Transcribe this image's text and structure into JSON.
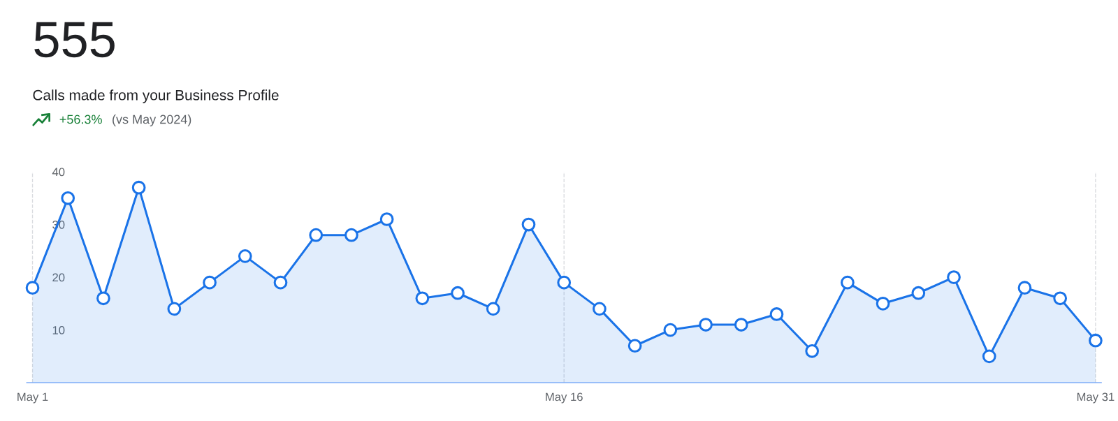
{
  "chart_data": {
    "type": "area",
    "title": "555",
    "subtitle": "Calls made from your Business Profile",
    "annotations": [
      "+56.3%",
      "(vs May 2024)"
    ],
    "categories": [
      "May 1",
      null,
      null,
      null,
      null,
      null,
      null,
      null,
      null,
      null,
      null,
      null,
      null,
      null,
      null,
      "May 16",
      null,
      null,
      null,
      null,
      null,
      null,
      null,
      null,
      null,
      null,
      null,
      null,
      null,
      null,
      "May 31"
    ],
    "series": [
      {
        "color": "#1a73e8",
        "values": [
          18,
          35,
          16,
          37,
          14,
          19,
          24,
          19,
          28,
          28,
          31,
          16,
          17,
          14,
          30,
          19,
          14,
          7,
          10,
          11,
          11,
          13,
          6,
          19,
          15,
          17,
          20,
          5,
          18,
          16,
          8
        ]
      }
    ],
    "marker": "circle",
    "line_style": "solid",
    "ylim": [
      0,
      40
    ],
    "yticks": [
      10,
      20,
      30,
      40
    ],
    "grid": "x",
    "legend": false
  }
}
